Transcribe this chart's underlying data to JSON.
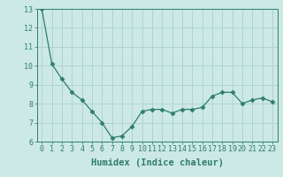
{
  "x": [
    0,
    1,
    2,
    3,
    4,
    5,
    6,
    7,
    8,
    9,
    10,
    11,
    12,
    13,
    14,
    15,
    16,
    17,
    18,
    19,
    20,
    21,
    22,
    23
  ],
  "y": [
    13.0,
    10.1,
    9.3,
    8.6,
    8.2,
    7.6,
    7.0,
    6.2,
    6.3,
    6.8,
    7.6,
    7.7,
    7.7,
    7.5,
    7.7,
    7.7,
    7.8,
    8.4,
    8.6,
    8.6,
    8.0,
    8.2,
    8.3,
    8.1
  ],
  "line_color": "#2e7d6e",
  "marker": "D",
  "marker_size": 2.5,
  "bg_color": "#cce9e5",
  "grid_color": "#b0d4cf",
  "xlabel": "Humidex (Indice chaleur)",
  "ylabel": "",
  "xlim": [
    -0.5,
    23.5
  ],
  "ylim": [
    6,
    13
  ],
  "yticks": [
    6,
    7,
    8,
    9,
    10,
    11,
    12,
    13
  ],
  "xticks": [
    0,
    1,
    2,
    3,
    4,
    5,
    6,
    7,
    8,
    9,
    10,
    11,
    12,
    13,
    14,
    15,
    16,
    17,
    18,
    19,
    20,
    21,
    22,
    23
  ],
  "tick_color": "#2e7d6e",
  "label_color": "#2e7d6e",
  "axis_color": "#2e7d6e",
  "tick_fontsize": 6,
  "xlabel_fontsize": 7.5
}
